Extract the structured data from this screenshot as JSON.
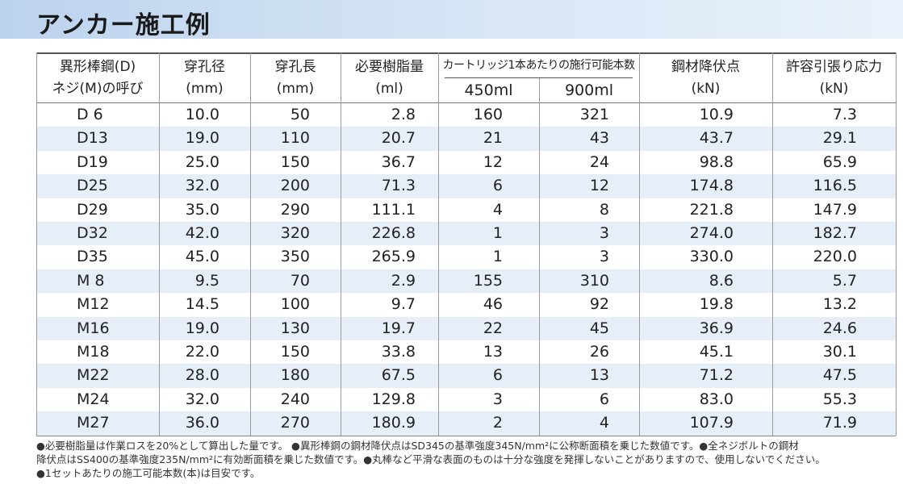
{
  "title": "アンカー施工例",
  "table": {
    "header": {
      "columns": [
        [
          "異形棒鋼(D)",
          "ネジ(M)の呼び"
        ],
        [
          "穿孔径",
          "(mm)"
        ],
        [
          "穿孔長",
          "(mm)"
        ],
        [
          "必要樹脂量",
          "(ml)"
        ],
        [
          "鋼材降伏点",
          "(kN)"
        ],
        [
          "許容引張り応力",
          "(kN)"
        ]
      ],
      "group": "カートリッジ1本あたりの施行可能本数",
      "subcolumns": [
        "450ml",
        "900ml"
      ]
    },
    "rows": [
      [
        "D 6",
        "10.0",
        "50",
        "2.8",
        "160",
        "321",
        "10.9",
        "7.3"
      ],
      [
        "D13",
        "19.0",
        "110",
        "20.7",
        "21",
        "43",
        "43.7",
        "29.1"
      ],
      [
        "D19",
        "25.0",
        "150",
        "36.7",
        "12",
        "24",
        "98.8",
        "65.9"
      ],
      [
        "D25",
        "32.0",
        "200",
        "71.3",
        "6",
        "12",
        "174.8",
        "116.5"
      ],
      [
        "D29",
        "35.0",
        "290",
        "111.1",
        "4",
        "8",
        "221.8",
        "147.9"
      ],
      [
        "D32",
        "42.0",
        "320",
        "226.8",
        "1",
        "3",
        "274.0",
        "182.7"
      ],
      [
        "D35",
        "45.0",
        "350",
        "265.9",
        "1",
        "3",
        "330.0",
        "220.0"
      ],
      [
        "M 8",
        "9.5",
        "70",
        "2.9",
        "155",
        "310",
        "8.6",
        "5.7"
      ],
      [
        "M12",
        "14.5",
        "100",
        "9.7",
        "46",
        "92",
        "19.8",
        "13.2"
      ],
      [
        "M16",
        "19.0",
        "130",
        "19.7",
        "22",
        "45",
        "36.9",
        "24.6"
      ],
      [
        "M18",
        "22.0",
        "150",
        "33.8",
        "13",
        "26",
        "45.1",
        "30.1"
      ],
      [
        "M22",
        "28.0",
        "180",
        "67.5",
        "6",
        "13",
        "71.2",
        "47.5"
      ],
      [
        "M24",
        "32.0",
        "240",
        "129.8",
        "3",
        "6",
        "83.0",
        "55.3"
      ],
      [
        "M27",
        "36.0",
        "270",
        "180.9",
        "2",
        "4",
        "107.9",
        "71.9"
      ]
    ]
  },
  "notes": [
    "●必要樹脂量は作業ロスを20%として算出した量です。 ●異形棒鋼の鋼材降伏点はSD345の基準強度345N/mm²に公称断面積を乗じた数値です。●全ネジボルトの鋼材",
    "降伏点はSS400の基準強度235N/mm²に有効断面積を乗じた数値です。●丸棒など平滑な表面のものは十分な強度を発揮しないことがありますので、使用しないでください。",
    "●1セットあたりの施工可能本数(本)は目安です。"
  ]
}
